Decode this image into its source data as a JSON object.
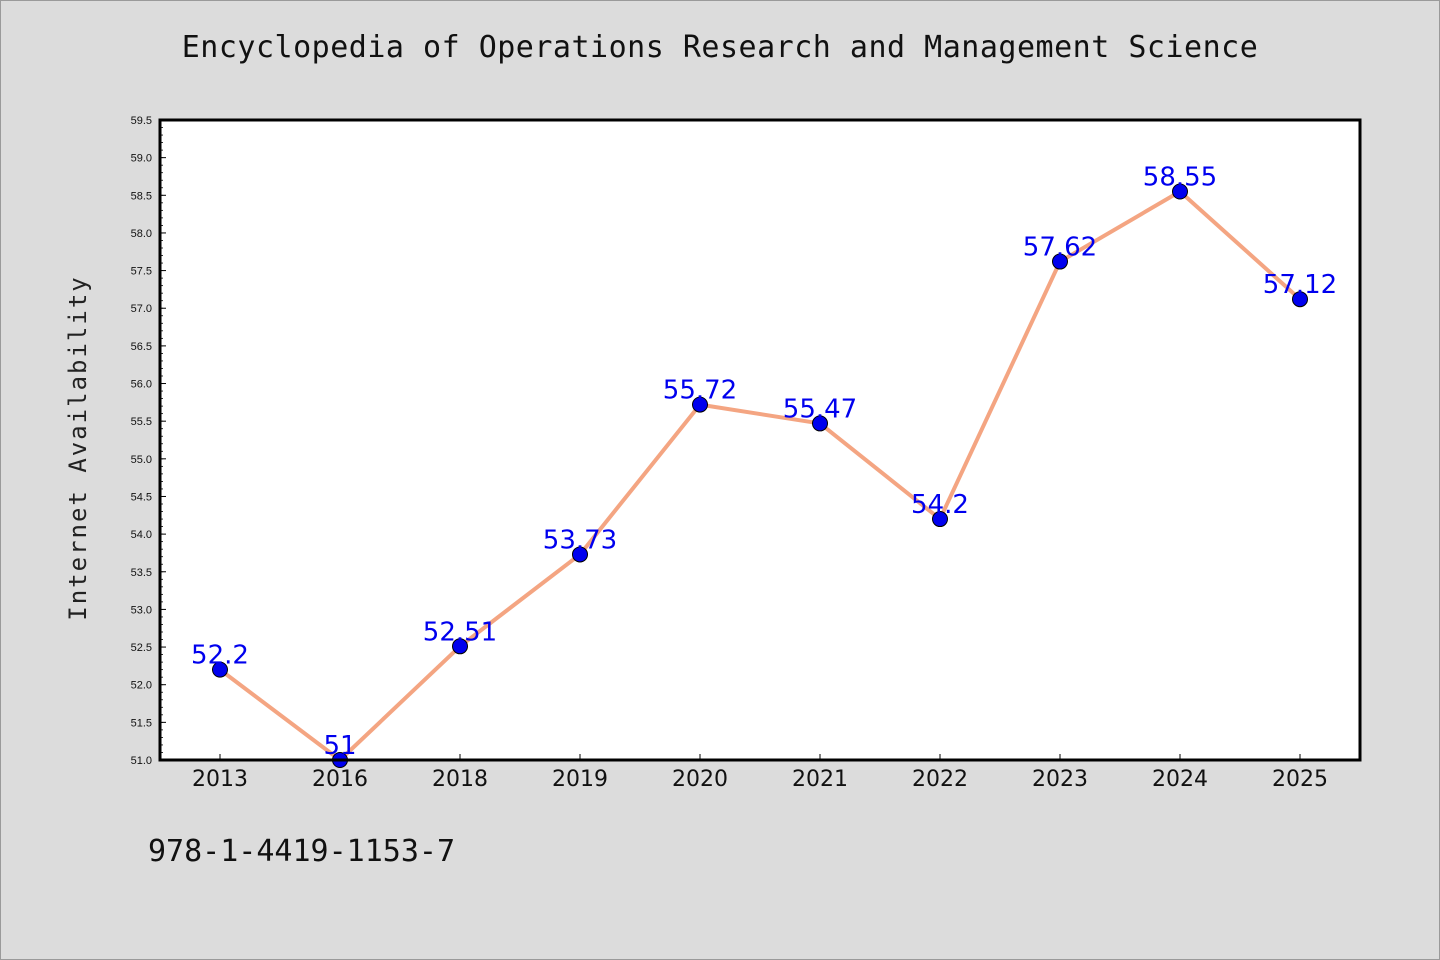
{
  "chart_data": {
    "type": "line",
    "title": "Encyclopedia of Operations Research and Management Science",
    "xlabel": "",
    "ylabel": "Internet Availability",
    "categories": [
      "2013",
      "2016",
      "2018",
      "2019",
      "2020",
      "2021",
      "2022",
      "2023",
      "2024",
      "2025"
    ],
    "series": [
      {
        "values": [
          52.2,
          51.0,
          52.51,
          53.73,
          55.72,
          55.47,
          54.2,
          57.62,
          58.55,
          57.12
        ],
        "data_labels": [
          "52.2",
          "51",
          "52.51",
          "53.73",
          "55.72",
          "55.47",
          "54.2",
          "57.62",
          "58.55",
          "57.12"
        ],
        "line_color": "#f4a582",
        "marker_color": "#0000ee",
        "label_color": "#0000ee"
      }
    ],
    "ylim": [
      51.0,
      59.5
    ],
    "y_ticks": [
      "51.0",
      "51.5",
      "52.0",
      "52.5",
      "53.0",
      "53.5",
      "54.0",
      "54.5",
      "55.0",
      "55.5",
      "56.0",
      "56.5",
      "57.0",
      "57.5",
      "58.0",
      "58.5",
      "59.0",
      "59.5"
    ],
    "grid": false,
    "legend": "none"
  },
  "footer": {
    "isbn": "978-1-4419-1153-7"
  },
  "colors": {
    "background": "#dcdcdc",
    "plot_background": "#ffffff",
    "axis": "#000000"
  }
}
